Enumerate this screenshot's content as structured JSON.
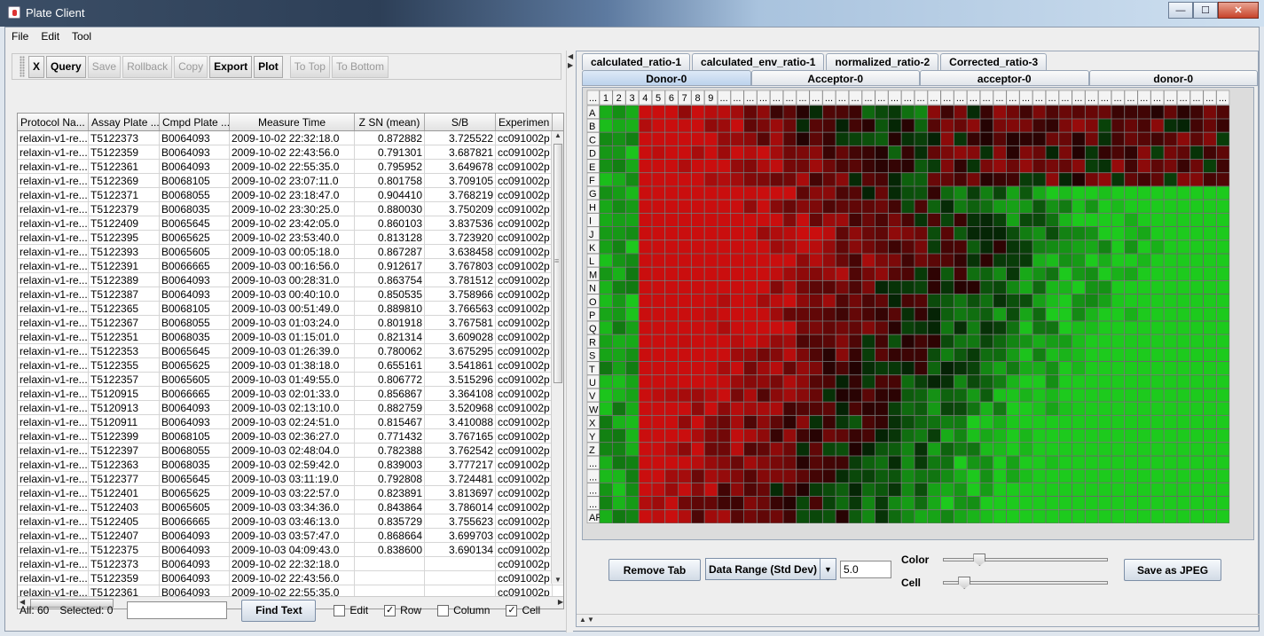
{
  "window": {
    "title": "Plate Client",
    "buttons": {
      "minimize": "—",
      "maximize": "☐",
      "close": "✕"
    }
  },
  "menu": [
    "File",
    "Edit",
    "Tool"
  ],
  "toolbar": {
    "buttons": [
      {
        "label": "X",
        "enabled": true
      },
      {
        "label": "Query",
        "enabled": true
      },
      {
        "label": "Save",
        "enabled": false
      },
      {
        "label": "Rollback",
        "enabled": false
      },
      {
        "label": "Copy",
        "enabled": false
      },
      {
        "label": "Export",
        "enabled": true
      },
      {
        "label": "Plot",
        "enabled": true
      },
      {
        "label": "To Top",
        "enabled": false
      },
      {
        "label": "To Bottom",
        "enabled": false
      }
    ]
  },
  "table": {
    "columns": [
      "Protocol Na...",
      "Assay Plate ...",
      "Cmpd Plate ...",
      "Measure Time",
      "Z SN (mean)",
      "S/B",
      "Experimen"
    ],
    "rows": [
      [
        "relaxin-v1-re...",
        "T5122373",
        "B0064093",
        "2009-10-02 22:32:18.0",
        "0.872882",
        "3.725522",
        "cc091002p"
      ],
      [
        "relaxin-v1-re...",
        "T5122359",
        "B0064093",
        "2009-10-02 22:43:56.0",
        "0.791301",
        "3.687821",
        "cc091002p"
      ],
      [
        "relaxin-v1-re...",
        "T5122361",
        "B0064093",
        "2009-10-02 22:55:35.0",
        "0.795952",
        "3.649678",
        "cc091002p"
      ],
      [
        "relaxin-v1-re...",
        "T5122369",
        "B0068105",
        "2009-10-02 23:07:11.0",
        "0.801758",
        "3.709105",
        "cc091002p"
      ],
      [
        "relaxin-v1-re...",
        "T5122371",
        "B0068055",
        "2009-10-02 23:18:47.0",
        "0.904410",
        "3.768219",
        "cc091002p"
      ],
      [
        "relaxin-v1-re...",
        "T5122379",
        "B0068035",
        "2009-10-02 23:30:25.0",
        "0.880030",
        "3.750209",
        "cc091002p"
      ],
      [
        "relaxin-v1-re...",
        "T5122409",
        "B0065645",
        "2009-10-02 23:42:05.0",
        "0.860103",
        "3.837536",
        "cc091002p"
      ],
      [
        "relaxin-v1-re...",
        "T5122395",
        "B0065625",
        "2009-10-02 23:53:40.0",
        "0.813128",
        "3.723920",
        "cc091002p"
      ],
      [
        "relaxin-v1-re...",
        "T5122393",
        "B0065605",
        "2009-10-03 00:05:18.0",
        "0.867287",
        "3.638458",
        "cc091002p"
      ],
      [
        "relaxin-v1-re...",
        "T5122391",
        "B0066665",
        "2009-10-03 00:16:56.0",
        "0.912617",
        "3.767803",
        "cc091002p"
      ],
      [
        "relaxin-v1-re...",
        "T5122389",
        "B0064093",
        "2009-10-03 00:28:31.0",
        "0.863754",
        "3.781512",
        "cc091002p"
      ],
      [
        "relaxin-v1-re...",
        "T5122387",
        "B0064093",
        "2009-10-03 00:40:10.0",
        "0.850535",
        "3.758966",
        "cc091002p"
      ],
      [
        "relaxin-v1-re...",
        "T5122365",
        "B0068105",
        "2009-10-03 00:51:49.0",
        "0.889810",
        "3.766563",
        "cc091002p"
      ],
      [
        "relaxin-v1-re...",
        "T5122367",
        "B0068055",
        "2009-10-03 01:03:24.0",
        "0.801918",
        "3.767581",
        "cc091002p"
      ],
      [
        "relaxin-v1-re...",
        "T5122351",
        "B0068035",
        "2009-10-03 01:15:01.0",
        "0.821314",
        "3.609028",
        "cc091002p"
      ],
      [
        "relaxin-v1-re...",
        "T5122353",
        "B0065645",
        "2009-10-03 01:26:39.0",
        "0.780062",
        "3.675295",
        "cc091002p"
      ],
      [
        "relaxin-v1-re...",
        "T5122355",
        "B0065625",
        "2009-10-03 01:38:18.0",
        "0.655161",
        "3.541861",
        "cc091002p"
      ],
      [
        "relaxin-v1-re...",
        "T5122357",
        "B0065605",
        "2009-10-03 01:49:55.0",
        "0.806772",
        "3.515296",
        "cc091002p"
      ],
      [
        "relaxin-v1-re...",
        "T5120915",
        "B0066665",
        "2009-10-03 02:01:33.0",
        "0.856867",
        "3.364108",
        "cc091002p"
      ],
      [
        "relaxin-v1-re...",
        "T5120913",
        "B0064093",
        "2009-10-03 02:13:10.0",
        "0.882759",
        "3.520968",
        "cc091002p"
      ],
      [
        "relaxin-v1-re...",
        "T5120911",
        "B0064093",
        "2009-10-03 02:24:51.0",
        "0.815467",
        "3.410088",
        "cc091002p"
      ],
      [
        "relaxin-v1-re...",
        "T5122399",
        "B0068105",
        "2009-10-03 02:36:27.0",
        "0.771432",
        "3.767165",
        "cc091002p"
      ],
      [
        "relaxin-v1-re...",
        "T5122397",
        "B0068055",
        "2009-10-03 02:48:04.0",
        "0.782388",
        "3.762542",
        "cc091002p"
      ],
      [
        "relaxin-v1-re...",
        "T5122363",
        "B0068035",
        "2009-10-03 02:59:42.0",
        "0.839003",
        "3.777217",
        "cc091002p"
      ],
      [
        "relaxin-v1-re...",
        "T5122377",
        "B0065645",
        "2009-10-03 03:11:19.0",
        "0.792808",
        "3.724481",
        "cc091002p"
      ],
      [
        "relaxin-v1-re...",
        "T5122401",
        "B0065625",
        "2009-10-03 03:22:57.0",
        "0.823891",
        "3.813697",
        "cc091002p"
      ],
      [
        "relaxin-v1-re...",
        "T5122403",
        "B0065605",
        "2009-10-03 03:34:36.0",
        "0.843864",
        "3.786014",
        "cc091002p"
      ],
      [
        "relaxin-v1-re...",
        "T5122405",
        "B0066665",
        "2009-10-03 03:46:13.0",
        "0.835729",
        "3.755623",
        "cc091002p"
      ],
      [
        "relaxin-v1-re...",
        "T5122407",
        "B0064093",
        "2009-10-03 03:57:47.0",
        "0.868664",
        "3.699703",
        "cc091002p"
      ],
      [
        "relaxin-v1-re...",
        "T5122375",
        "B0064093",
        "2009-10-03 04:09:43.0",
        "0.838600",
        "3.690134",
        "cc091002p"
      ],
      [
        "relaxin-v1-re...",
        "T5122373",
        "B0064093",
        "2009-10-02 22:32:18.0",
        "",
        "",
        "cc091002p"
      ],
      [
        "relaxin-v1-re...",
        "T5122359",
        "B0064093",
        "2009-10-02 22:43:56.0",
        "",
        "",
        "cc091002p"
      ],
      [
        "relaxin-v1-re...",
        "T5122361",
        "B0064093",
        "2009-10-02 22:55:35.0",
        "",
        "",
        "cc091002p"
      ]
    ]
  },
  "status": {
    "all": "All: 60",
    "selected": "Selected: 0",
    "find_button": "Find Text",
    "checkboxes": [
      {
        "label": "Edit",
        "checked": false
      },
      {
        "label": "Row",
        "checked": true
      },
      {
        "label": "Column",
        "checked": false
      },
      {
        "label": "Cell",
        "checked": true
      }
    ]
  },
  "tabs_top": [
    "calculated_ratio-1",
    "calculated_env_ratio-1",
    "normalized_ratio-2",
    "Corrected_ratio-3"
  ],
  "tabs_sub": [
    "Donor-0",
    "Acceptor-0",
    "acceptor-0",
    "donor-0"
  ],
  "active_sub_tab": 0,
  "plate": {
    "col_headers": [
      "...",
      "1",
      "2",
      "3",
      "4",
      "5",
      "6",
      "7",
      "8",
      "9"
    ],
    "row_labels": [
      "A",
      "B",
      "C",
      "D",
      "E",
      "F",
      "G",
      "H",
      "I",
      "J",
      "K",
      "L",
      "M",
      "N",
      "O",
      "P",
      "Q",
      "R",
      "S",
      "T",
      "U",
      "V",
      "W",
      "X",
      "Y",
      "Z",
      "...",
      "...",
      "...",
      "...",
      "AF"
    ],
    "cell_marker": "...",
    "colors": {
      "high": "#e01010",
      "low": "#20e020",
      "mid": "#0a0a0a"
    }
  },
  "controls": {
    "remove_tab": "Remove Tab",
    "data_range": "Data Range (Std Dev)",
    "data_range_value": "5.0",
    "color_label": "Color",
    "cell_label": "Cell",
    "color_slider": 0.2,
    "cell_slider": 0.1,
    "save_jpeg": "Save as JPEG"
  }
}
